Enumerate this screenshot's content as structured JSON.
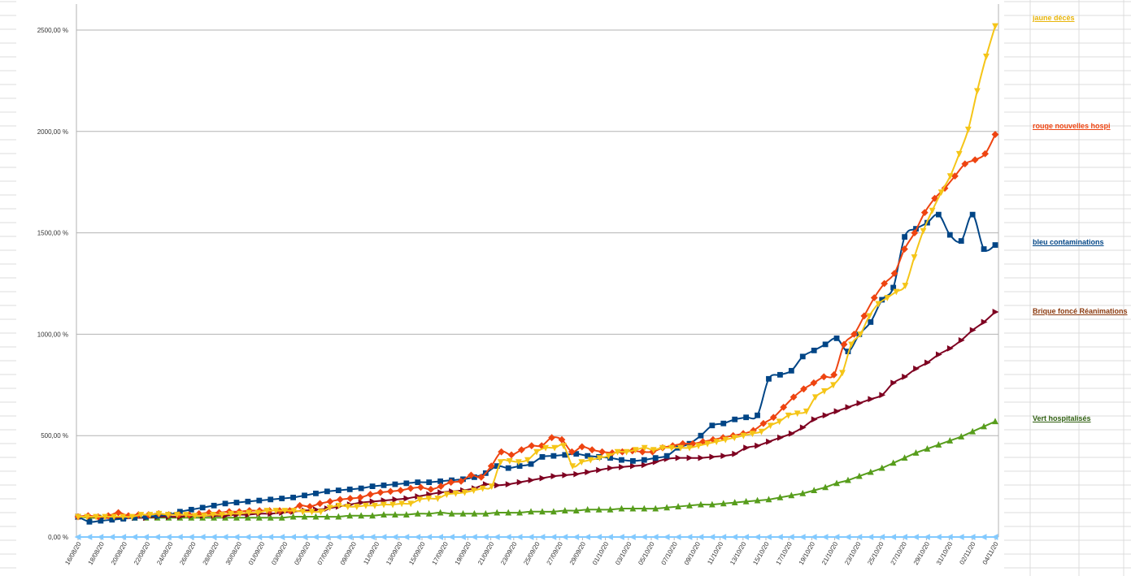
{
  "chart_data": {
    "type": "line",
    "title": "",
    "xlabel": "",
    "ylabel": "",
    "ylim": [
      0,
      2500
    ],
    "y_tick_values": [
      0,
      500,
      1000,
      1500,
      2000,
      2500
    ],
    "y_tick_labels": [
      "0,00 %",
      "500,00 %",
      "1000,00 %",
      "1500,00 %",
      "2000,00 %",
      "2500,00 %"
    ],
    "grid": "horizontal",
    "legend_placement": "right",
    "x_start": "16/08/20",
    "x_end": "04/11/20",
    "x_tick_labels": [
      "16/08/20",
      "18/08/20",
      "20/08/20",
      "22/08/20",
      "24/08/20",
      "26/08/20",
      "28/08/20",
      "30/08/20",
      "01/09/20",
      "03/09/20",
      "05/09/20",
      "07/09/20",
      "09/09/20",
      "11/09/20",
      "13/09/20",
      "15/09/20",
      "17/09/20",
      "19/09/20",
      "21/09/20",
      "23/09/20",
      "25/09/20",
      "27/09/20",
      "29/09/20",
      "01/10/20",
      "03/10/20",
      "05/10/20",
      "07/10/20",
      "09/10/20",
      "11/10/20",
      "13/10/20",
      "15/10/20",
      "17/10/20",
      "19/10/20",
      "21/10/20",
      "23/10/20",
      "25/10/20",
      "27/10/20",
      "29/10/20",
      "31/10/20",
      "02/11/20",
      "04/11/20"
    ],
    "series": [
      {
        "name": "jaune décès",
        "color": "#f5c518",
        "marker": "triangle-down",
        "values": [
          100,
          100,
          100,
          100,
          100,
          100,
          100,
          110,
          110,
          115,
          110,
          110,
          110,
          105,
          105,
          110,
          110,
          115,
          115,
          120,
          120,
          130,
          130,
          130,
          130,
          125,
          125,
          125,
          145,
          155,
          150,
          150,
          155,
          155,
          160,
          160,
          165,
          165,
          185,
          190,
          190,
          210,
          215,
          220,
          230,
          240,
          250,
          370,
          375,
          370,
          380,
          420,
          440,
          440,
          450,
          350,
          370,
          380,
          390,
          400,
          420,
          420,
          430,
          440,
          430,
          440,
          440,
          440,
          440,
          450,
          460,
          470,
          480,
          490,
          500,
          510,
          520,
          550,
          570,
          600,
          610,
          620,
          690,
          720,
          750,
          810,
          950,
          1000,
          1090,
          1150,
          1180,
          1210,
          1240,
          1380,
          1510,
          1610,
          1700,
          1780,
          1890,
          2010,
          2200,
          2370,
          2520
        ]
      },
      {
        "name": "rouge nouvelles hospi",
        "color": "#ee4411",
        "marker": "diamond",
        "values": [
          100,
          105,
          100,
          105,
          120,
          105,
          110,
          110,
          115,
          110,
          110,
          110,
          115,
          120,
          120,
          125,
          125,
          130,
          130,
          130,
          130,
          130,
          155,
          150,
          165,
          175,
          185,
          190,
          195,
          210,
          220,
          225,
          230,
          240,
          245,
          235,
          250,
          270,
          275,
          305,
          295,
          350,
          420,
          405,
          430,
          450,
          450,
          490,
          480,
          420,
          445,
          430,
          420,
          415,
          420,
          425,
          420,
          420,
          440,
          450,
          460,
          460,
          470,
          480,
          490,
          500,
          510,
          525,
          560,
          590,
          640,
          690,
          730,
          760,
          790,
          800,
          950,
          1000,
          1090,
          1180,
          1250,
          1300,
          1420,
          1500,
          1600,
          1670,
          1720,
          1780,
          1840,
          1860,
          1890,
          1985
        ]
      },
      {
        "name": "bleu contaminations",
        "color": "#004586",
        "marker": "square",
        "values": [
          100,
          75,
          80,
          85,
          90,
          95,
          100,
          105,
          110,
          125,
          135,
          145,
          155,
          165,
          170,
          175,
          180,
          185,
          190,
          195,
          205,
          215,
          225,
          230,
          235,
          240,
          250,
          255,
          260,
          265,
          270,
          270,
          275,
          280,
          285,
          295,
          315,
          350,
          340,
          350,
          360,
          395,
          400,
          405,
          410,
          400,
          395,
          390,
          380,
          375,
          380,
          390,
          400,
          440,
          460,
          500,
          550,
          560,
          580,
          590,
          600,
          780,
          800,
          820,
          890,
          920,
          950,
          980,
          915,
          1000,
          1060,
          1170,
          1230,
          1480,
          1520,
          1550,
          1590,
          1490,
          1460,
          1590,
          1420,
          1440
        ]
      },
      {
        "name": "Brique foncé Réanimations",
        "color": "#7e0021",
        "marker": "triangle-right",
        "values": [
          100,
          100,
          95,
          95,
          95,
          95,
          95,
          100,
          100,
          100,
          105,
          105,
          105,
          105,
          110,
          110,
          115,
          115,
          120,
          125,
          130,
          135,
          140,
          150,
          160,
          170,
          175,
          180,
          185,
          190,
          200,
          210,
          220,
          225,
          230,
          240,
          260,
          255,
          260,
          270,
          280,
          290,
          300,
          305,
          310,
          320,
          330,
          340,
          345,
          350,
          355,
          370,
          385,
          390,
          390,
          390,
          395,
          400,
          410,
          440,
          450,
          470,
          490,
          510,
          540,
          580,
          600,
          620,
          640,
          660,
          680,
          700,
          760,
          790,
          830,
          860,
          900,
          930,
          970,
          1020,
          1060,
          1110
        ]
      },
      {
        "name": "Vert hospitalisés",
        "color": "#579d1c",
        "marker": "triangle-up",
        "values": [
          100,
          95,
          95,
          95,
          95,
          95,
          95,
          95,
          95,
          95,
          95,
          95,
          95,
          95,
          95,
          95,
          95,
          95,
          95,
          100,
          100,
          100,
          100,
          100,
          105,
          105,
          105,
          110,
          110,
          110,
          115,
          115,
          120,
          115,
          115,
          115,
          115,
          120,
          120,
          120,
          125,
          125,
          125,
          130,
          130,
          135,
          135,
          135,
          140,
          140,
          140,
          140,
          145,
          150,
          155,
          160,
          160,
          165,
          170,
          175,
          180,
          185,
          195,
          205,
          215,
          230,
          245,
          265,
          280,
          300,
          320,
          340,
          365,
          390,
          415,
          435,
          455,
          475,
          495,
          520,
          545,
          570
        ]
      },
      {
        "name": "",
        "color": "#83caff",
        "marker": "triangle-left",
        "values": [
          0,
          0,
          0,
          0,
          0,
          0,
          0,
          0,
          0,
          0,
          0,
          0,
          0,
          0,
          0,
          0,
          0,
          0,
          0,
          0,
          0,
          0,
          0,
          0,
          0,
          0,
          0,
          0,
          0,
          0,
          0,
          0,
          0,
          0,
          0,
          0,
          0,
          0,
          0,
          0,
          0,
          0,
          0,
          0,
          0,
          0,
          0,
          0,
          0,
          0,
          0,
          0,
          0,
          0,
          0,
          0,
          0,
          0,
          0,
          0,
          0,
          0,
          0,
          0,
          0,
          0,
          0,
          0,
          0,
          0,
          0,
          0,
          0,
          0,
          0,
          0,
          0,
          0,
          0,
          0,
          0,
          0
        ]
      }
    ]
  },
  "legend": [
    {
      "label": "jaune décès",
      "color": "#e8b50a"
    },
    {
      "label": "rouge nouvelles hospi",
      "color": "#ee4411"
    },
    {
      "label": "bleu contaminations",
      "color": "#004586"
    },
    {
      "label": "Brique foncé Réanimations",
      "color": "#8b3a0f"
    },
    {
      "label": "Vert hospitalisés",
      "color": "#2f5f10"
    }
  ]
}
